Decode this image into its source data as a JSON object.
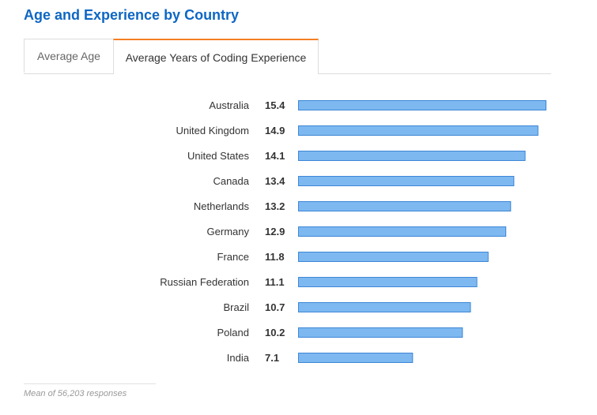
{
  "title": "Age and Experience by Country",
  "tabs": [
    {
      "label": "Average Age",
      "active": false
    },
    {
      "label": "Average Years of Coding Experience",
      "active": true
    }
  ],
  "colors": {
    "title": "#0e66c4",
    "bar_fill": "#7db8f0",
    "bar_stroke": "#3d86d6",
    "active_tab_accent": "#f48024"
  },
  "chart_data": {
    "type": "bar",
    "orientation": "horizontal",
    "categories": [
      "Australia",
      "United Kingdom",
      "United States",
      "Canada",
      "Netherlands",
      "Germany",
      "France",
      "Russian Federation",
      "Brazil",
      "Poland",
      "India"
    ],
    "values": [
      15.4,
      14.9,
      14.1,
      13.4,
      13.2,
      12.9,
      11.8,
      11.1,
      10.7,
      10.2,
      7.1
    ],
    "value_labels": [
      "15.4",
      "14.9",
      "14.1",
      "13.4",
      "13.2",
      "12.9",
      "11.8",
      "11.1",
      "10.7",
      "10.2",
      "7.1"
    ]
  },
  "footnote": "Mean of 56,203 responses"
}
